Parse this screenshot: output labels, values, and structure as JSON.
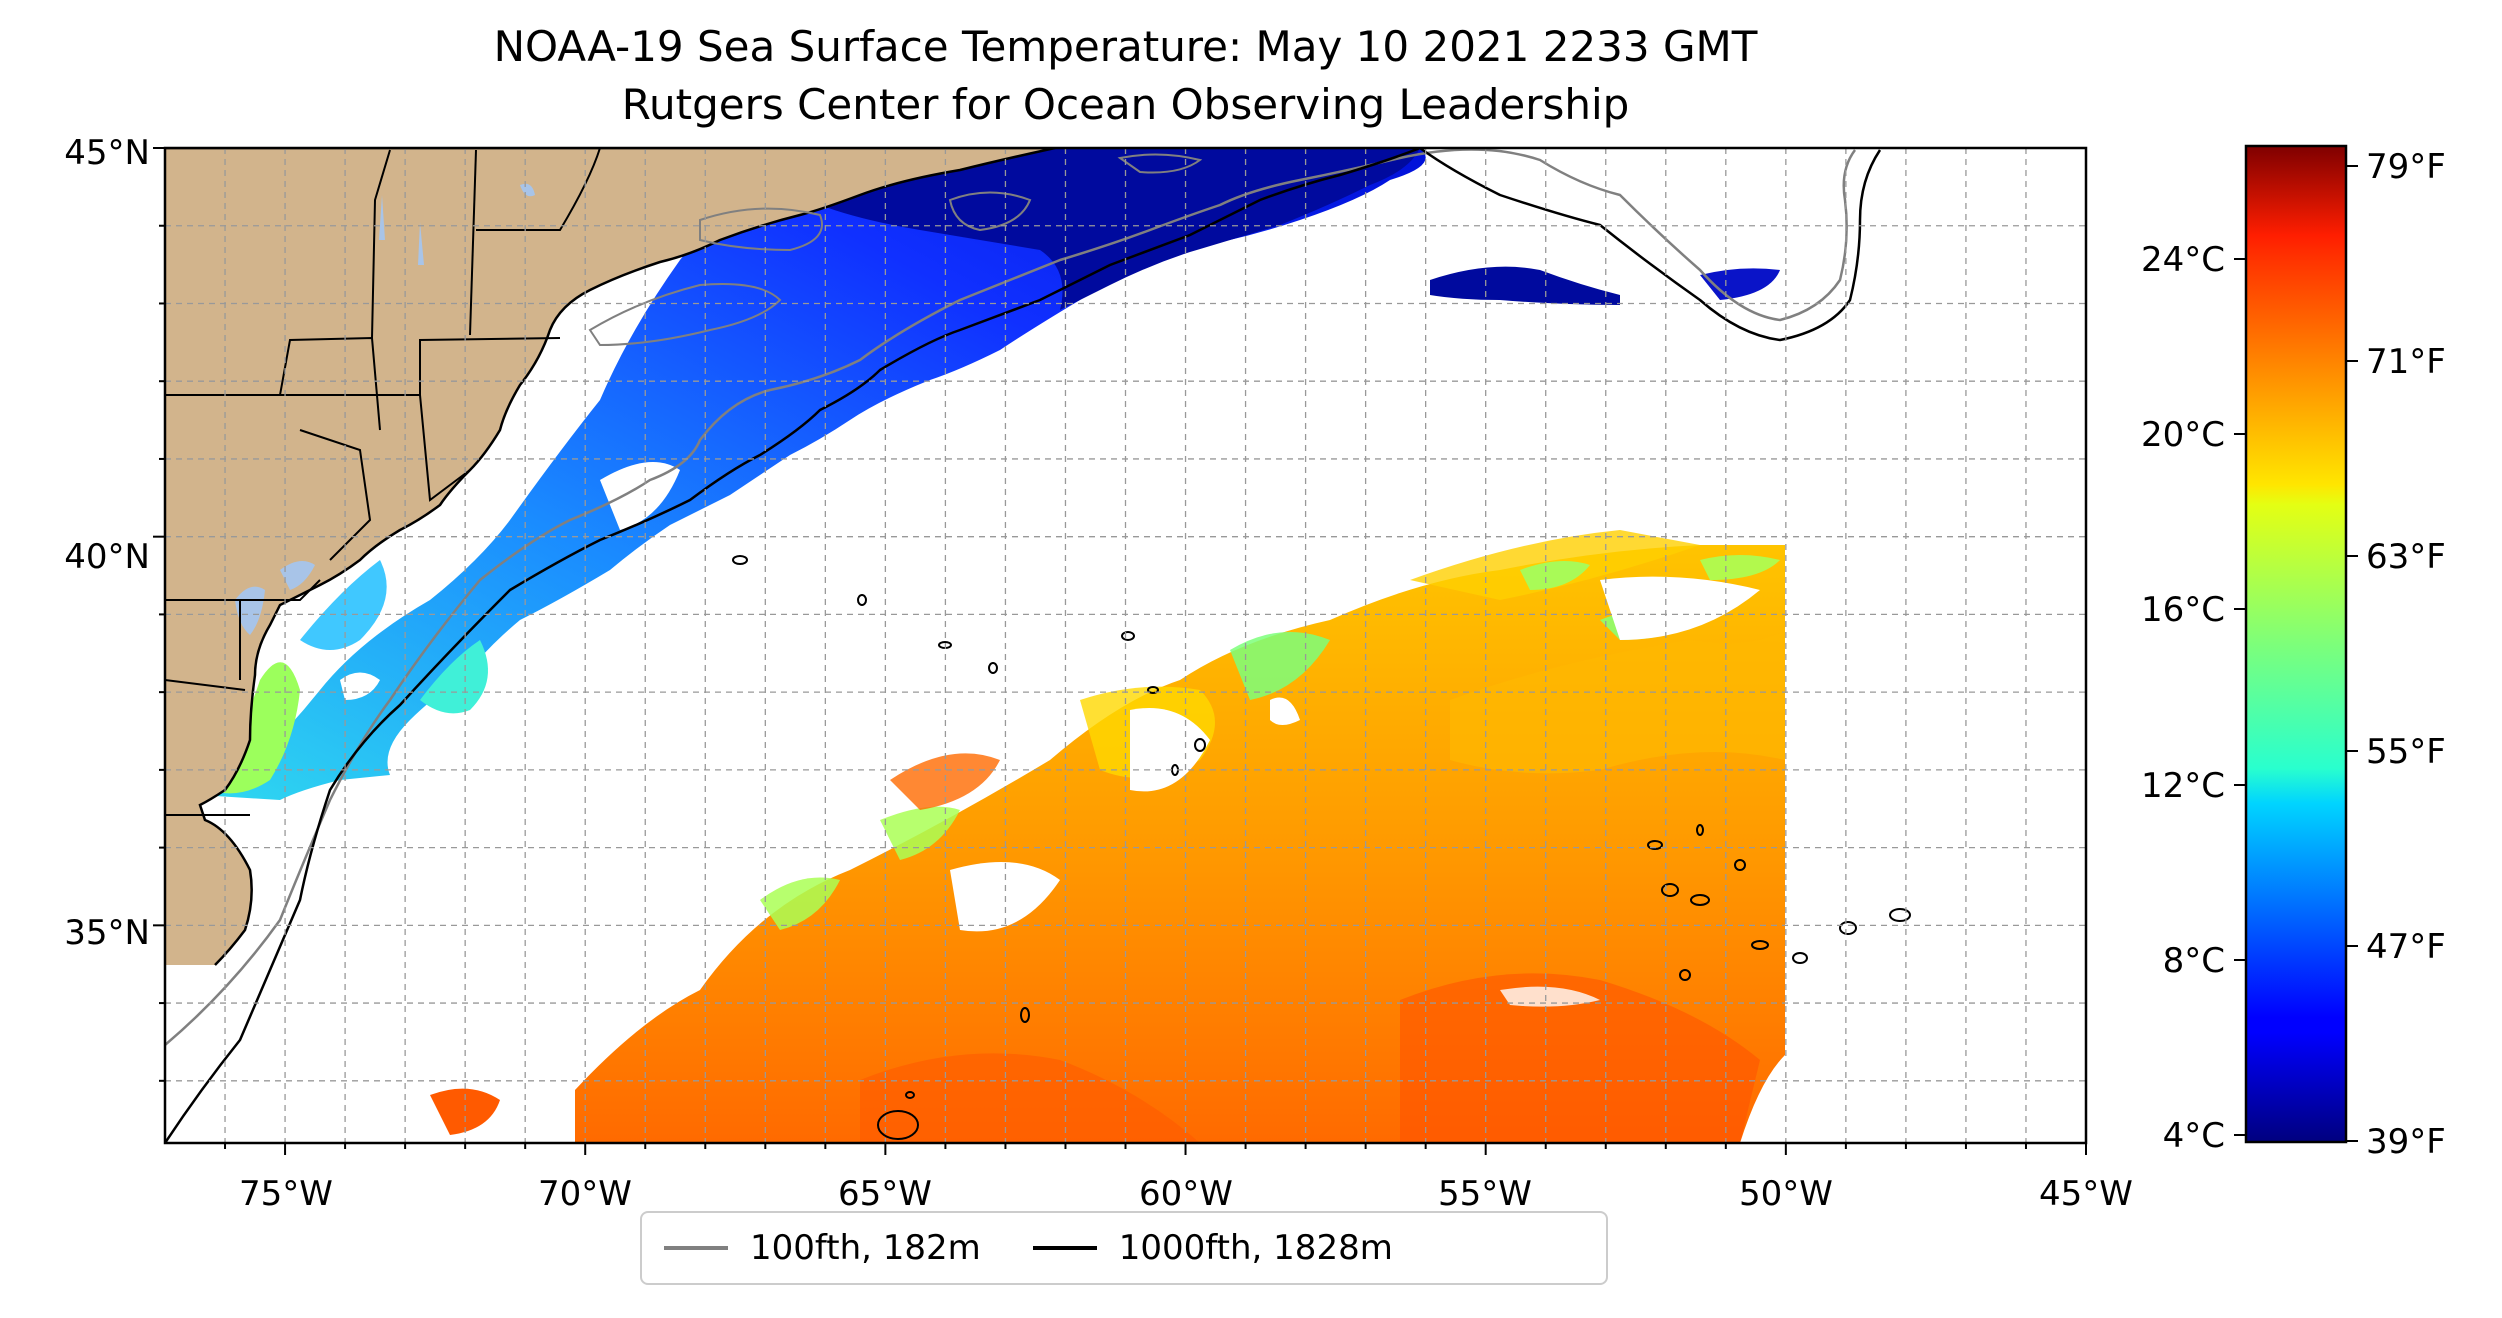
{
  "title": "NOAA-19 Sea Surface Temperature: May 10 2021 2233 GMT",
  "subtitle": "Rutgers Center for Ocean Observing Leadership",
  "map": {
    "extent": {
      "lon": [
        -77,
        -45
      ],
      "lat": [
        32.2,
        45
      ]
    },
    "x_ticks": [
      "75°W",
      "70°W",
      "65°W",
      "60°W",
      "55°W",
      "50°W",
      "45°W"
    ],
    "y_ticks": [
      "35°N",
      "40°N",
      "45°N"
    ],
    "land_color": "#d2b48c",
    "grid": "on, dashed"
  },
  "legend": {
    "items": [
      {
        "label": "100fth, 182m",
        "color": "#808080"
      },
      {
        "label": "1000fth, 1828m",
        "color": "#000000"
      }
    ],
    "placement": "bottom-center"
  },
  "colorbar": {
    "colormap": "jet",
    "celsius_range": [
      3.6,
      26.6
    ],
    "celsius_ticks": [
      "24°C",
      "20°C",
      "16°C",
      "12°C",
      "8°C",
      "4°C"
    ],
    "fahrenheit_ticks": [
      "79°F",
      "71°F",
      "63°F",
      "55°F",
      "47°F",
      "39°F"
    ]
  }
}
